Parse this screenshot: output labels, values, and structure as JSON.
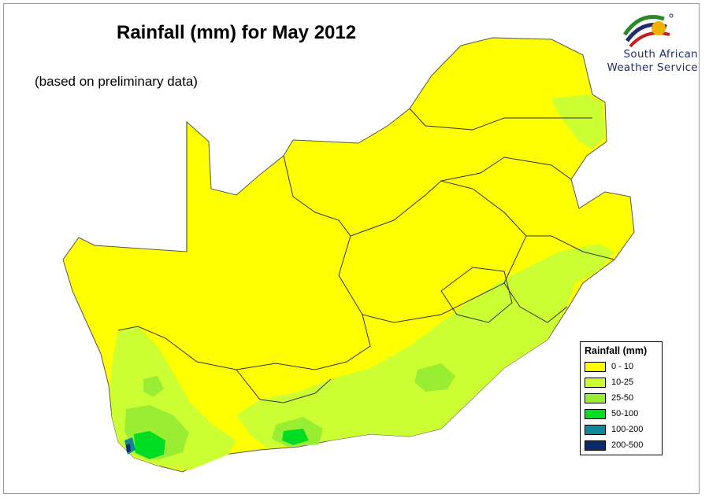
{
  "title": "Rainfall (mm) for May 2012",
  "subtitle": "(based on preliminary data)",
  "logo": {
    "line1": "South African",
    "line2": "Weather Service"
  },
  "legend": {
    "title": "Rainfall (mm)",
    "items": [
      {
        "label": "0 - 10",
        "color": "#ffff00"
      },
      {
        "label": "10-25",
        "color": "#ccff33"
      },
      {
        "label": "25-50",
        "color": "#99ee33"
      },
      {
        "label": "50-100",
        "color": "#00dd22"
      },
      {
        "label": "100-200",
        "color": "#118899"
      },
      {
        "label": "200-500",
        "color": "#0a2a6a"
      }
    ]
  },
  "colors": {
    "border": "#222222",
    "outline": "#666666"
  }
}
